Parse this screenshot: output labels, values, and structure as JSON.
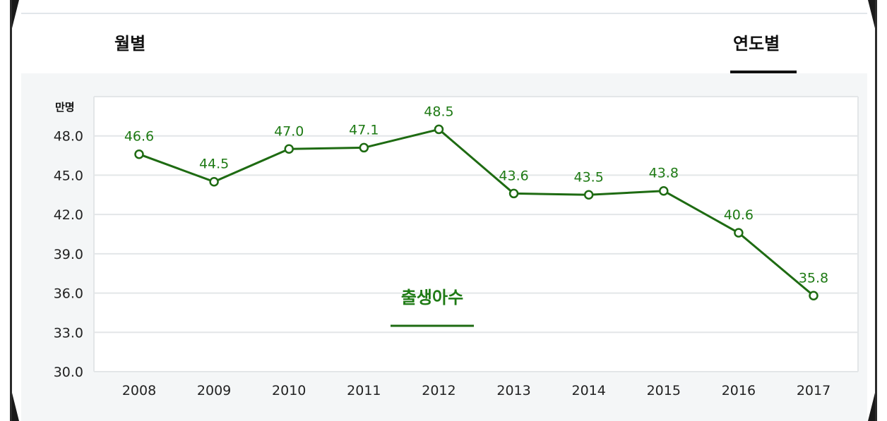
{
  "tabs": {
    "monthly": "월별",
    "yearly": "연도별",
    "active": "yearly"
  },
  "colors": {
    "series": "#1e6b12",
    "label": "#1e7a14",
    "grid": "#e3e6e8"
  },
  "chart_data": {
    "type": "line",
    "unit": "만명",
    "x": [
      "2008",
      "2009",
      "2010",
      "2011",
      "2012",
      "2013",
      "2014",
      "2015",
      "2016",
      "2017"
    ],
    "series": [
      {
        "name": "출생아수",
        "values": [
          46.6,
          44.5,
          47.0,
          47.1,
          48.5,
          43.6,
          43.5,
          43.8,
          40.6,
          35.8
        ]
      }
    ],
    "data_labels": [
      "46.6",
      "44.5",
      "47.0",
      "47.1",
      "48.5",
      "43.6",
      "43.5",
      "43.8",
      "40.6",
      "35.8"
    ],
    "y_ticks": [
      "30.0",
      "33.0",
      "36.0",
      "39.0",
      "42.0",
      "45.0",
      "48.0"
    ],
    "ylim": [
      30,
      51
    ],
    "grid": true,
    "legend_position": "center"
  }
}
